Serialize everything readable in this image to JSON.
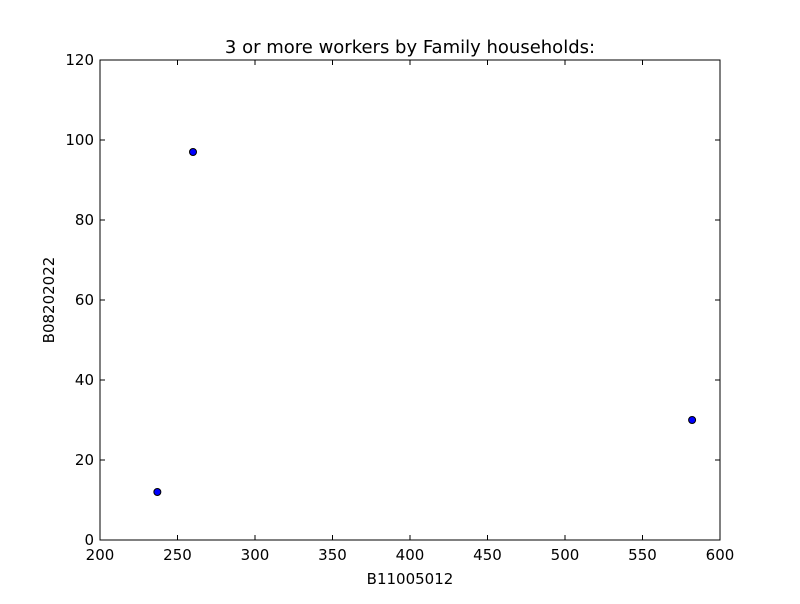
{
  "chart_data": {
    "type": "scatter",
    "title": "3 or more workers by Family households:",
    "xlabel": "B11005012",
    "ylabel": "B08202022",
    "xlim": [
      200,
      600
    ],
    "ylim": [
      0,
      120
    ],
    "xticks": [
      200,
      250,
      300,
      350,
      400,
      450,
      500,
      550,
      600
    ],
    "yticks": [
      0,
      20,
      40,
      60,
      80,
      100,
      120
    ],
    "grid": false,
    "marker_color": "#0000ff",
    "marker_edge_color": "#000000",
    "points": [
      {
        "x": 260,
        "y": 97
      },
      {
        "x": 237,
        "y": 12
      },
      {
        "x": 582,
        "y": 30
      }
    ]
  }
}
